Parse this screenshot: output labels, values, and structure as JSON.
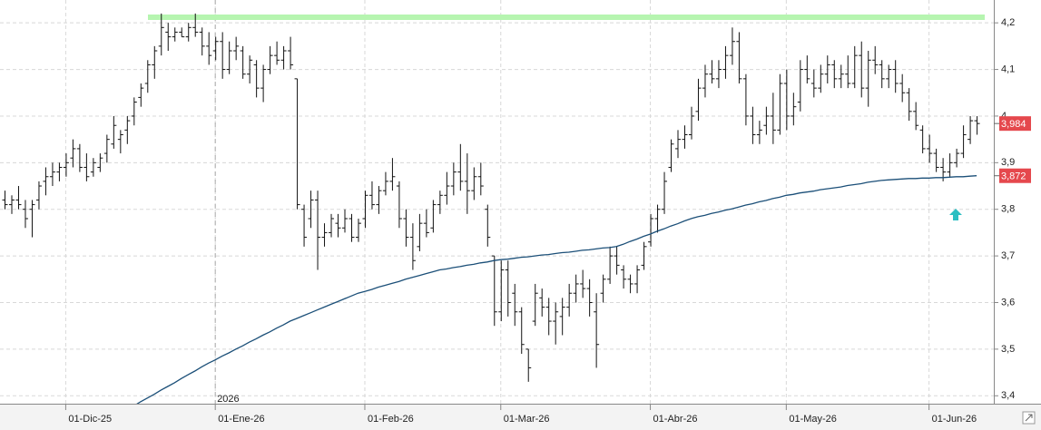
{
  "chart_data": {
    "type": "ohlc",
    "year_label": "2026",
    "categories": [
      null,
      null,
      null,
      null,
      null,
      null,
      null,
      null,
      null,
      "01-Dic-25",
      null,
      null,
      null,
      null,
      null,
      null,
      null,
      null,
      null,
      null,
      null,
      null,
      null,
      null,
      null,
      null,
      null,
      null,
      null,
      null,
      null,
      "01-Ene-26",
      null,
      null,
      null,
      null,
      null,
      null,
      null,
      null,
      null,
      null,
      null,
      null,
      null,
      null,
      null,
      null,
      null,
      null,
      null,
      null,
      null,
      "01-Feb-26",
      null,
      null,
      null,
      null,
      null,
      null,
      null,
      null,
      null,
      null,
      null,
      null,
      null,
      null,
      null,
      null,
      null,
      null,
      null,
      "01-Mar-26",
      null,
      null,
      null,
      null,
      null,
      null,
      null,
      null,
      null,
      null,
      null,
      null,
      null,
      null,
      null,
      null,
      null,
      null,
      null,
      null,
      null,
      "01-Abr-26",
      null,
      null,
      null,
      null,
      null,
      null,
      null,
      null,
      null,
      null,
      null,
      null,
      null,
      null,
      null,
      null,
      null,
      null,
      null,
      "01-May-26",
      null,
      null,
      null,
      null,
      null,
      null,
      null,
      null,
      null,
      null,
      null,
      null,
      null,
      null,
      null,
      null,
      null,
      null,
      null,
      null,
      "01-Jun-26",
      null,
      null,
      null,
      null,
      null,
      null,
      null
    ],
    "ohlc": [
      [
        3.82,
        3.84,
        3.8,
        3.81
      ],
      [
        3.81,
        3.83,
        3.79,
        3.82
      ],
      [
        3.82,
        3.85,
        3.8,
        3.81
      ],
      [
        3.8,
        3.82,
        3.76,
        3.78
      ],
      [
        3.8,
        3.82,
        3.74,
        3.81
      ],
      [
        3.82,
        3.86,
        3.8,
        3.85
      ],
      [
        3.86,
        3.89,
        3.83,
        3.87
      ],
      [
        3.87,
        3.9,
        3.85,
        3.88
      ],
      [
        3.88,
        3.9,
        3.86,
        3.89
      ],
      [
        3.89,
        3.92,
        3.87,
        3.9
      ],
      [
        3.91,
        3.95,
        3.89,
        3.93
      ],
      [
        3.93,
        3.94,
        3.88,
        3.89
      ],
      [
        3.89,
        3.92,
        3.86,
        3.87
      ],
      [
        3.88,
        3.91,
        3.87,
        3.9
      ],
      [
        3.89,
        3.92,
        3.88,
        3.91
      ],
      [
        3.92,
        3.96,
        3.9,
        3.95
      ],
      [
        3.94,
        4.0,
        3.93,
        3.98
      ],
      [
        3.95,
        3.97,
        3.92,
        3.96
      ],
      [
        3.97,
        4.0,
        3.94,
        3.99
      ],
      [
        4.0,
        4.04,
        3.98,
        4.03
      ],
      [
        4.04,
        4.07,
        4.02,
        4.06
      ],
      [
        4.07,
        4.12,
        4.05,
        4.11
      ],
      [
        4.11,
        4.15,
        4.08,
        4.14
      ],
      [
        4.15,
        4.22,
        4.13,
        4.19
      ],
      [
        4.18,
        4.2,
        4.14,
        4.17
      ],
      [
        4.17,
        4.19,
        4.16,
        4.18
      ],
      [
        4.18,
        4.19,
        4.17,
        4.17
      ],
      [
        4.17,
        4.2,
        4.16,
        4.19
      ],
      [
        4.19,
        4.22,
        4.17,
        4.18
      ],
      [
        4.18,
        4.19,
        4.13,
        4.15
      ],
      [
        4.15,
        4.18,
        4.11,
        4.13
      ],
      [
        4.14,
        4.17,
        4.12,
        4.16
      ],
      [
        4.16,
        4.18,
        4.08,
        4.1
      ],
      [
        4.1,
        4.16,
        4.09,
        4.14
      ],
      [
        4.14,
        4.17,
        4.12,
        4.15
      ],
      [
        4.14,
        4.15,
        4.08,
        4.09
      ],
      [
        4.09,
        4.13,
        4.07,
        4.12
      ],
      [
        4.11,
        4.12,
        4.04,
        4.06
      ],
      [
        4.06,
        4.11,
        4.03,
        4.1
      ],
      [
        4.1,
        4.15,
        4.09,
        4.13
      ],
      [
        4.13,
        4.16,
        4.11,
        4.12
      ],
      [
        4.12,
        4.15,
        4.1,
        4.14
      ],
      [
        4.14,
        4.17,
        4.1,
        4.11
      ],
      [
        4.08,
        4.08,
        3.8,
        3.81
      ],
      [
        3.8,
        3.81,
        3.72,
        3.74
      ],
      [
        3.78,
        3.84,
        3.76,
        3.82
      ],
      [
        3.82,
        3.84,
        3.67,
        3.74
      ],
      [
        3.74,
        3.77,
        3.72,
        3.75
      ],
      [
        3.75,
        3.79,
        3.74,
        3.78
      ],
      [
        3.77,
        3.79,
        3.74,
        3.76
      ],
      [
        3.76,
        3.8,
        3.75,
        3.78
      ],
      [
        3.78,
        3.79,
        3.73,
        3.74
      ],
      [
        3.74,
        3.78,
        3.73,
        3.77
      ],
      [
        3.78,
        3.84,
        3.76,
        3.83
      ],
      [
        3.83,
        3.86,
        3.8,
        3.81
      ],
      [
        3.81,
        3.85,
        3.79,
        3.84
      ],
      [
        3.84,
        3.88,
        3.83,
        3.86
      ],
      [
        3.86,
        3.91,
        3.84,
        3.87
      ],
      [
        3.85,
        3.86,
        3.76,
        3.78
      ],
      [
        3.78,
        3.8,
        3.72,
        3.74
      ],
      [
        3.74,
        3.77,
        3.67,
        3.69
      ],
      [
        3.72,
        3.79,
        3.71,
        3.77
      ],
      [
        3.77,
        3.8,
        3.74,
        3.75
      ],
      [
        3.76,
        3.82,
        3.75,
        3.81
      ],
      [
        3.81,
        3.84,
        3.79,
        3.83
      ],
      [
        3.83,
        3.88,
        3.81,
        3.85
      ],
      [
        3.85,
        3.9,
        3.83,
        3.88
      ],
      [
        3.88,
        3.94,
        3.84,
        3.86
      ],
      [
        3.86,
        3.92,
        3.79,
        3.84
      ],
      [
        3.84,
        3.89,
        3.82,
        3.87
      ],
      [
        3.87,
        3.9,
        3.83,
        3.85
      ],
      [
        3.8,
        3.81,
        3.72,
        3.74
      ],
      [
        3.7,
        3.7,
        3.55,
        3.58
      ],
      [
        3.58,
        3.69,
        3.56,
        3.67
      ],
      [
        3.67,
        3.69,
        3.57,
        3.6
      ],
      [
        3.62,
        3.64,
        3.55,
        3.58
      ],
      [
        3.58,
        3.59,
        3.49,
        3.51
      ],
      [
        3.5,
        3.5,
        3.43,
        3.46
      ],
      [
        3.56,
        3.64,
        3.55,
        3.62
      ],
      [
        3.61,
        3.63,
        3.57,
        3.59
      ],
      [
        3.59,
        3.61,
        3.53,
        3.56
      ],
      [
        3.56,
        3.6,
        3.51,
        3.58
      ],
      [
        3.57,
        3.61,
        3.53,
        3.59
      ],
      [
        3.59,
        3.64,
        3.57,
        3.62
      ],
      [
        3.62,
        3.66,
        3.6,
        3.64
      ],
      [
        3.64,
        3.67,
        3.61,
        3.63
      ],
      [
        3.63,
        3.65,
        3.57,
        3.6
      ],
      [
        3.58,
        3.62,
        3.46,
        3.51
      ],
      [
        3.62,
        3.66,
        3.6,
        3.65
      ],
      [
        3.65,
        3.72,
        3.64,
        3.7
      ],
      [
        3.7,
        3.72,
        3.66,
        3.68
      ],
      [
        3.67,
        3.68,
        3.63,
        3.65
      ],
      [
        3.65,
        3.66,
        3.62,
        3.64
      ],
      [
        3.64,
        3.68,
        3.62,
        3.67
      ],
      [
        3.68,
        3.73,
        3.67,
        3.72
      ],
      [
        3.73,
        3.79,
        3.72,
        3.78
      ],
      [
        3.78,
        3.81,
        3.75,
        3.8
      ],
      [
        3.8,
        3.88,
        3.79,
        3.86
      ],
      [
        3.89,
        3.95,
        3.88,
        3.94
      ],
      [
        3.93,
        3.97,
        3.91,
        3.95
      ],
      [
        3.95,
        3.98,
        3.93,
        3.96
      ],
      [
        3.96,
        4.02,
        3.95,
        4.0
      ],
      [
        4.01,
        4.08,
        3.99,
        4.06
      ],
      [
        4.06,
        4.11,
        4.04,
        4.09
      ],
      [
        4.09,
        4.12,
        4.07,
        4.08
      ],
      [
        4.08,
        4.12,
        4.06,
        4.1
      ],
      [
        4.1,
        4.15,
        4.08,
        4.13
      ],
      [
        4.13,
        4.19,
        4.11,
        4.16
      ],
      [
        4.16,
        4.18,
        4.07,
        4.08
      ],
      [
        4.08,
        4.09,
        3.98,
        4.0
      ],
      [
        4.0,
        4.02,
        3.94,
        3.96
      ],
      [
        3.96,
        3.99,
        3.94,
        3.97
      ],
      [
        3.98,
        4.02,
        3.96,
        4.0
      ],
      [
        4.0,
        4.05,
        3.94,
        3.97
      ],
      [
        3.97,
        4.09,
        3.96,
        4.07
      ],
      [
        4.07,
        4.1,
        3.97,
        4.0
      ],
      [
        4.0,
        4.05,
        3.98,
        4.02
      ],
      [
        4.03,
        4.12,
        4.01,
        4.1
      ],
      [
        4.1,
        4.13,
        4.07,
        4.08
      ],
      [
        4.07,
        4.1,
        4.04,
        4.06
      ],
      [
        4.06,
        4.11,
        4.05,
        4.09
      ],
      [
        4.09,
        4.13,
        4.07,
        4.11
      ],
      [
        4.11,
        4.12,
        4.06,
        4.08
      ],
      [
        4.08,
        4.11,
        4.06,
        4.09
      ],
      [
        4.09,
        4.13,
        4.06,
        4.07
      ],
      [
        4.07,
        4.15,
        4.06,
        4.13
      ],
      [
        4.13,
        4.16,
        4.04,
        4.06
      ],
      [
        4.06,
        4.14,
        4.02,
        4.12
      ],
      [
        4.12,
        4.15,
        4.09,
        4.11
      ],
      [
        4.11,
        4.12,
        4.06,
        4.08
      ],
      [
        4.08,
        4.11,
        4.06,
        4.1
      ],
      [
        4.1,
        4.12,
        4.05,
        4.07
      ],
      [
        4.07,
        4.09,
        4.03,
        4.05
      ],
      [
        4.05,
        4.06,
        3.99,
        4.01
      ],
      [
        4.01,
        4.03,
        3.97,
        3.98
      ],
      [
        3.97,
        3.98,
        3.92,
        3.93
      ],
      [
        3.93,
        3.96,
        3.9,
        3.92
      ],
      [
        3.92,
        3.93,
        3.88,
        3.89
      ],
      [
        3.89,
        3.91,
        3.86,
        3.88
      ],
      [
        3.88,
        3.92,
        3.87,
        3.9
      ],
      [
        3.9,
        3.93,
        3.89,
        3.92
      ],
      [
        3.92,
        3.98,
        3.91,
        3.96
      ],
      [
        3.95,
        4.0,
        3.94,
        3.99
      ],
      [
        3.99,
        4.0,
        3.96,
        3.984
      ]
    ],
    "bar_color": "#111111",
    "moving_average": {
      "color": "#1b4f78",
      "values": [
        null,
        null,
        null,
        null,
        null,
        null,
        null,
        null,
        null,
        null,
        null,
        null,
        null,
        null,
        null,
        null,
        null,
        null,
        3.37,
        3.378,
        3.387,
        3.395,
        3.403,
        3.412,
        3.42,
        3.428,
        3.437,
        3.445,
        3.453,
        3.462,
        3.47,
        3.477,
        3.485,
        3.492,
        3.5,
        3.507,
        3.515,
        3.522,
        3.53,
        3.537,
        3.545,
        3.552,
        3.56,
        3.566,
        3.572,
        3.578,
        3.584,
        3.59,
        3.596,
        3.602,
        3.608,
        3.614,
        3.62,
        3.624,
        3.628,
        3.633,
        3.637,
        3.641,
        3.645,
        3.65,
        3.654,
        3.658,
        3.662,
        3.666,
        3.67,
        3.672,
        3.675,
        3.677,
        3.68,
        3.682,
        3.685,
        3.687,
        3.69,
        3.692,
        3.693,
        3.695,
        3.697,
        3.698,
        3.7,
        3.702,
        3.703,
        3.705,
        3.707,
        3.708,
        3.71,
        3.712,
        3.713,
        3.715,
        3.717,
        3.718,
        3.72,
        3.725,
        3.731,
        3.736,
        3.742,
        3.747,
        3.753,
        3.758,
        3.764,
        3.769,
        3.775,
        3.78,
        3.784,
        3.787,
        3.791,
        3.794,
        3.798,
        3.801,
        3.805,
        3.809,
        3.812,
        3.816,
        3.819,
        3.823,
        3.826,
        3.83,
        3.832,
        3.835,
        3.837,
        3.839,
        3.842,
        3.844,
        3.846,
        3.848,
        3.851,
        3.853,
        3.855,
        3.858,
        3.86,
        3.862,
        3.863,
        3.864,
        3.865,
        3.866,
        3.866,
        3.867,
        3.867,
        3.868,
        3.868,
        3.869,
        3.87,
        3.87,
        3.871,
        3.872
      ]
    },
    "resistance": {
      "value": 4.212,
      "color": "#b6f5b0"
    },
    "price_tags": [
      {
        "value": 3.984,
        "label": "3,984"
      },
      {
        "value": 3.872,
        "label": "3,872"
      }
    ],
    "tag_color": "#e5484d",
    "ylim": [
      3.383,
      4.249
    ],
    "yticks": [
      {
        "value": 3.4,
        "label": "3,4"
      },
      {
        "value": 3.5,
        "label": "3,5"
      },
      {
        "value": 3.6,
        "label": "3,6"
      },
      {
        "value": 3.7,
        "label": "3,7"
      },
      {
        "value": 3.8,
        "label": "3,8"
      },
      {
        "value": 3.9,
        "label": "3,9"
      },
      4,
      {
        "value": 4.1,
        "label": "4,1"
      },
      {
        "value": 4.2,
        "label": "4,2"
      }
    ],
    "grid": true
  }
}
